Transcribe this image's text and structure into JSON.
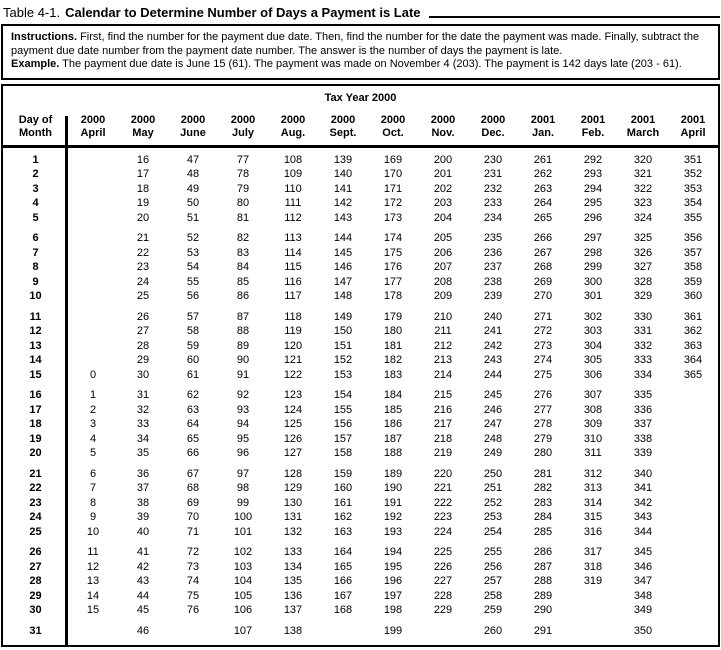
{
  "page": {
    "title_prefix": "Table 4-1.",
    "title_main": "Calendar to Determine Number of Days a Payment is Late"
  },
  "instructions": {
    "label": "Instructions.",
    "body": "First, find the number for the payment due date. Then, find the number for the date the payment was made. Finally, subtract the payment due date number from the payment date number. The answer is the number of days the payment is late.",
    "example_label": "Example.",
    "example_body": "The payment due date is June 15 (61). The payment was made on November 4 (203). The payment is 142 days late (203 - 61)."
  },
  "table": {
    "span_header": "Tax Year 2000",
    "day_header_line1": "Day of",
    "day_header_line2": "Month",
    "columns": [
      {
        "year": "2000",
        "month": "April"
      },
      {
        "year": "2000",
        "month": "May"
      },
      {
        "year": "2000",
        "month": "June"
      },
      {
        "year": "2000",
        "month": "July"
      },
      {
        "year": "2000",
        "month": "Aug."
      },
      {
        "year": "2000",
        "month": "Sept."
      },
      {
        "year": "2000",
        "month": "Oct."
      },
      {
        "year": "2000",
        "month": "Nov."
      },
      {
        "year": "2000",
        "month": "Dec."
      },
      {
        "year": "2001",
        "month": "Jan."
      },
      {
        "year": "2001",
        "month": "Feb."
      },
      {
        "year": "2001",
        "month": "March"
      },
      {
        "year": "2001",
        "month": "April"
      }
    ],
    "row_groups": [
      {
        "rows": [
          {
            "day": "1",
            "cells": [
              "",
              "16",
              "47",
              "77",
              "108",
              "139",
              "169",
              "200",
              "230",
              "261",
              "292",
              "320",
              "351"
            ]
          },
          {
            "day": "2",
            "cells": [
              "",
              "17",
              "48",
              "78",
              "109",
              "140",
              "170",
              "201",
              "231",
              "262",
              "293",
              "321",
              "352"
            ]
          },
          {
            "day": "3",
            "cells": [
              "",
              "18",
              "49",
              "79",
              "110",
              "141",
              "171",
              "202",
              "232",
              "263",
              "294",
              "322",
              "353"
            ]
          },
          {
            "day": "4",
            "cells": [
              "",
              "19",
              "50",
              "80",
              "111",
              "142",
              "172",
              "203",
              "233",
              "264",
              "295",
              "323",
              "354"
            ]
          },
          {
            "day": "5",
            "cells": [
              "",
              "20",
              "51",
              "81",
              "112",
              "143",
              "173",
              "204",
              "234",
              "265",
              "296",
              "324",
              "355"
            ]
          }
        ]
      },
      {
        "rows": [
          {
            "day": "6",
            "cells": [
              "",
              "21",
              "52",
              "82",
              "113",
              "144",
              "174",
              "205",
              "235",
              "266",
              "297",
              "325",
              "356"
            ]
          },
          {
            "day": "7",
            "cells": [
              "",
              "22",
              "53",
              "83",
              "114",
              "145",
              "175",
              "206",
              "236",
              "267",
              "298",
              "326",
              "357"
            ]
          },
          {
            "day": "8",
            "cells": [
              "",
              "23",
              "54",
              "84",
              "115",
              "146",
              "176",
              "207",
              "237",
              "268",
              "299",
              "327",
              "358"
            ]
          },
          {
            "day": "9",
            "cells": [
              "",
              "24",
              "55",
              "85",
              "116",
              "147",
              "177",
              "208",
              "238",
              "269",
              "300",
              "328",
              "359"
            ]
          },
          {
            "day": "10",
            "cells": [
              "",
              "25",
              "56",
              "86",
              "117",
              "148",
              "178",
              "209",
              "239",
              "270",
              "301",
              "329",
              "360"
            ]
          }
        ]
      },
      {
        "rows": [
          {
            "day": "11",
            "cells": [
              "",
              "26",
              "57",
              "87",
              "118",
              "149",
              "179",
              "210",
              "240",
              "271",
              "302",
              "330",
              "361"
            ]
          },
          {
            "day": "12",
            "cells": [
              "",
              "27",
              "58",
              "88",
              "119",
              "150",
              "180",
              "211",
              "241",
              "272",
              "303",
              "331",
              "362"
            ]
          },
          {
            "day": "13",
            "cells": [
              "",
              "28",
              "59",
              "89",
              "120",
              "151",
              "181",
              "212",
              "242",
              "273",
              "304",
              "332",
              "363"
            ]
          },
          {
            "day": "14",
            "cells": [
              "",
              "29",
              "60",
              "90",
              "121",
              "152",
              "182",
              "213",
              "243",
              "274",
              "305",
              "333",
              "364"
            ]
          },
          {
            "day": "15",
            "cells": [
              "0",
              "30",
              "61",
              "91",
              "122",
              "153",
              "183",
              "214",
              "244",
              "275",
              "306",
              "334",
              "365"
            ]
          }
        ]
      },
      {
        "rows": [
          {
            "day": "16",
            "cells": [
              "1",
              "31",
              "62",
              "92",
              "123",
              "154",
              "184",
              "215",
              "245",
              "276",
              "307",
              "335",
              ""
            ]
          },
          {
            "day": "17",
            "cells": [
              "2",
              "32",
              "63",
              "93",
              "124",
              "155",
              "185",
              "216",
              "246",
              "277",
              "308",
              "336",
              ""
            ]
          },
          {
            "day": "18",
            "cells": [
              "3",
              "33",
              "64",
              "94",
              "125",
              "156",
              "186",
              "217",
              "247",
              "278",
              "309",
              "337",
              ""
            ]
          },
          {
            "day": "19",
            "cells": [
              "4",
              "34",
              "65",
              "95",
              "126",
              "157",
              "187",
              "218",
              "248",
              "279",
              "310",
              "338",
              ""
            ]
          },
          {
            "day": "20",
            "cells": [
              "5",
              "35",
              "66",
              "96",
              "127",
              "158",
              "188",
              "219",
              "249",
              "280",
              "311",
              "339",
              ""
            ]
          }
        ]
      },
      {
        "rows": [
          {
            "day": "21",
            "cells": [
              "6",
              "36",
              "67",
              "97",
              "128",
              "159",
              "189",
              "220",
              "250",
              "281",
              "312",
              "340",
              ""
            ]
          },
          {
            "day": "22",
            "cells": [
              "7",
              "37",
              "68",
              "98",
              "129",
              "160",
              "190",
              "221",
              "251",
              "282",
              "313",
              "341",
              ""
            ]
          },
          {
            "day": "23",
            "cells": [
              "8",
              "38",
              "69",
              "99",
              "130",
              "161",
              "191",
              "222",
              "252",
              "283",
              "314",
              "342",
              ""
            ]
          },
          {
            "day": "24",
            "cells": [
              "9",
              "39",
              "70",
              "100",
              "131",
              "162",
              "192",
              "223",
              "253",
              "284",
              "315",
              "343",
              ""
            ]
          },
          {
            "day": "25",
            "cells": [
              "10",
              "40",
              "71",
              "101",
              "132",
              "163",
              "193",
              "224",
              "254",
              "285",
              "316",
              "344",
              ""
            ]
          }
        ]
      },
      {
        "rows": [
          {
            "day": "26",
            "cells": [
              "11",
              "41",
              "72",
              "102",
              "133",
              "164",
              "194",
              "225",
              "255",
              "286",
              "317",
              "345",
              ""
            ]
          },
          {
            "day": "27",
            "cells": [
              "12",
              "42",
              "73",
              "103",
              "134",
              "165",
              "195",
              "226",
              "256",
              "287",
              "318",
              "346",
              ""
            ]
          },
          {
            "day": "28",
            "cells": [
              "13",
              "43",
              "74",
              "104",
              "135",
              "166",
              "196",
              "227",
              "257",
              "288",
              "319",
              "347",
              ""
            ]
          },
          {
            "day": "29",
            "cells": [
              "14",
              "44",
              "75",
              "105",
              "136",
              "167",
              "197",
              "228",
              "258",
              "289",
              "",
              "348",
              ""
            ]
          },
          {
            "day": "30",
            "cells": [
              "15",
              "45",
              "76",
              "106",
              "137",
              "168",
              "198",
              "229",
              "259",
              "290",
              "",
              "349",
              ""
            ]
          }
        ]
      },
      {
        "rows": [
          {
            "day": "31",
            "cells": [
              "",
              "46",
              "",
              "107",
              "138",
              "",
              "199",
              "",
              "260",
              "291",
              "",
              "350",
              ""
            ]
          }
        ]
      }
    ]
  }
}
